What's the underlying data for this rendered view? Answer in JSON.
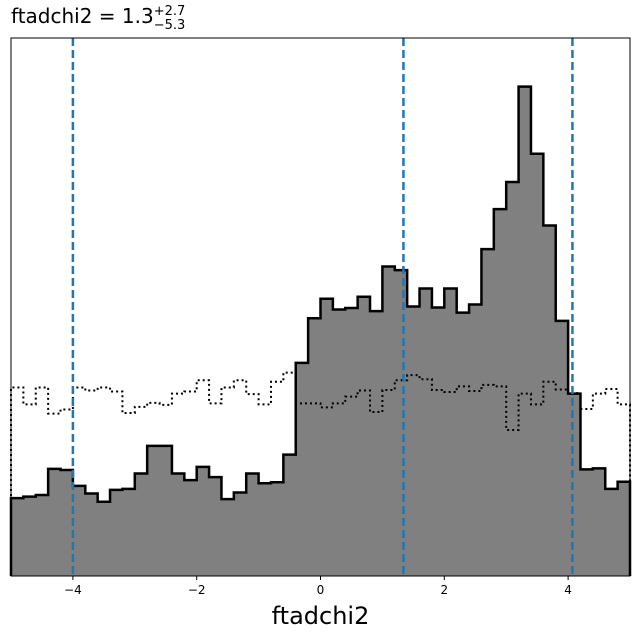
{
  "chart_data": {
    "type": "histogram",
    "title": {
      "param": "ftadchi2",
      "median": "1.3",
      "upper": "+2.7",
      "lower": "−5.3"
    },
    "xlabel": "ftadchi2",
    "ylabel": "",
    "xlim": [
      -5,
      5
    ],
    "ylim": [
      0,
      1.05
    ],
    "x_ticks": [
      -4,
      -2,
      0,
      2,
      4
    ],
    "x_tick_labels": [
      "−4",
      "−2",
      "0",
      "2",
      "4"
    ],
    "y_ticks_shown": false,
    "bin_width": 0.2,
    "series": [
      {
        "name": "",
        "style": "filled-step",
        "fill": "#808080",
        "edge": "#000000",
        "bin_edges_start": -5.0,
        "values": [
          0.152,
          0.155,
          0.158,
          0.209,
          0.207,
          0.176,
          0.161,
          0.145,
          0.168,
          0.17,
          0.2,
          0.254,
          0.254,
          0.2,
          0.187,
          0.213,
          0.193,
          0.15,
          0.163,
          0.2,
          0.181,
          0.183,
          0.237,
          0.416,
          0.503,
          0.541,
          0.52,
          0.523,
          0.545,
          0.517,
          0.604,
          0.597,
          0.526,
          0.561,
          0.524,
          0.561,
          0.514,
          0.53,
          0.638,
          0.716,
          0.769,
          0.955,
          0.824,
          0.684,
          0.498,
          0.356,
          0.208,
          0.21,
          0.17,
          0.184
        ]
      },
      {
        "name": "",
        "style": "dotted-step",
        "edge": "#000000",
        "bin_edges_start": -5.0,
        "values": [
          0.368,
          0.335,
          0.368,
          0.317,
          0.325,
          0.368,
          0.362,
          0.368,
          0.36,
          0.318,
          0.33,
          0.338,
          0.334,
          0.356,
          0.36,
          0.382,
          0.337,
          0.368,
          0.382,
          0.355,
          0.335,
          0.379,
          0.397,
          0.337,
          0.337,
          0.329,
          0.337,
          0.35,
          0.362,
          0.32,
          0.363,
          0.382,
          0.392,
          0.384,
          0.363,
          0.359,
          0.37,
          0.361,
          0.373,
          0.37,
          0.285,
          0.356,
          0.335,
          0.379,
          0.364,
          0.357,
          0.326,
          0.356,
          0.365,
          0.335
        ]
      }
    ],
    "vlines": {
      "color": "#1f77b4",
      "style": "dashed",
      "x": [
        -4.0,
        1.34,
        4.07
      ]
    }
  }
}
